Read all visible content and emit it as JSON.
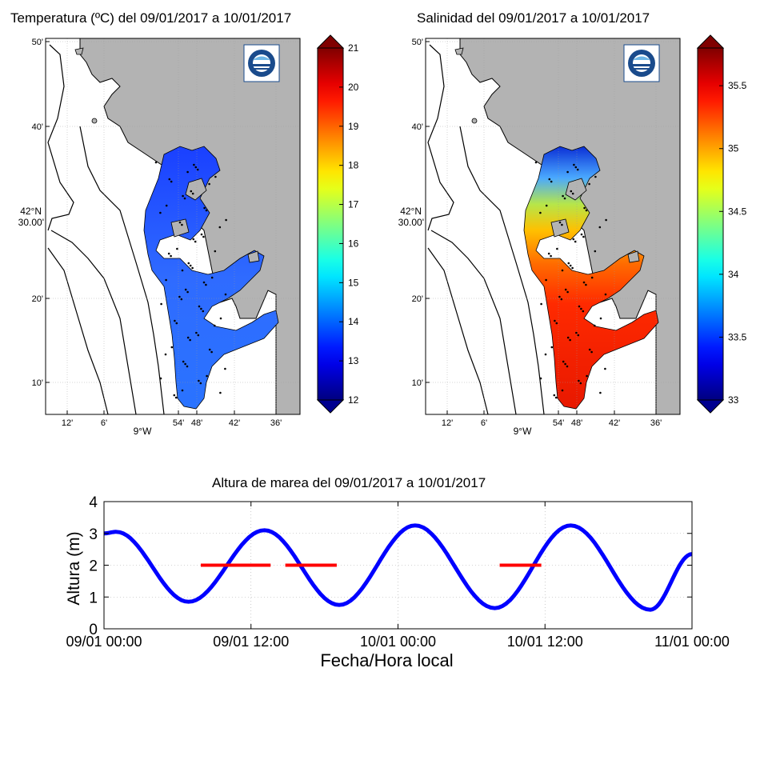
{
  "maps": {
    "temperature": {
      "title": "Temperatura (ºC) del 09/01/2017 a 10/01/2017",
      "colorbar_ticks": [
        "12",
        "13",
        "14",
        "15",
        "16",
        "17",
        "18",
        "19",
        "20",
        "21"
      ],
      "colorbar_range": [
        12,
        21
      ]
    },
    "salinity": {
      "title": "Salinidad del 09/01/2017 a 10/01/2017",
      "colorbar_ticks": [
        "33",
        "33.5",
        "34",
        "34.5",
        "35",
        "35.5"
      ],
      "colorbar_range": [
        33,
        35.8
      ]
    },
    "lat_ticks": [
      "50'",
      "40'",
      "20'",
      "10'"
    ],
    "lat_main": [
      "42°N",
      "30.00'"
    ],
    "lon_ticks": [
      "12'",
      "6'",
      "54'",
      "48'",
      "42'",
      "36'"
    ],
    "lon_main": "9°W",
    "colors": {
      "land": "#b3b3b3",
      "sea": "#ffffff",
      "stations": "#000000"
    }
  },
  "chart_data": {
    "type": "line",
    "title": "Altura de marea del 09/01/2017 a 10/01/2017",
    "xlabel": "Fecha/Hora local",
    "ylabel": "Altura (m)",
    "ylim": [
      0,
      4
    ],
    "xlim_hours": [
      0,
      48
    ],
    "yticks": [
      "0",
      "1",
      "2",
      "3",
      "4"
    ],
    "xticks": [
      {
        "hours": 0,
        "label": "09/01 00:00"
      },
      {
        "hours": 12,
        "label": "09/01 12:00"
      },
      {
        "hours": 24,
        "label": "10/01 00:00"
      },
      {
        "hours": 36,
        "label": "10/01 12:00"
      },
      {
        "hours": 48,
        "label": "11/01 00:00"
      }
    ],
    "series": [
      {
        "color": "#0000ff",
        "x": [
          0,
          1,
          6.9,
          13.1,
          19.2,
          25.4,
          31.9,
          38.1,
          44.6,
          48
        ],
        "y": [
          3.0,
          3.05,
          0.85,
          3.1,
          0.75,
          3.25,
          0.65,
          3.25,
          0.6,
          2.35
        ]
      }
    ],
    "sampling_windows": {
      "color": "#ff0000",
      "y": 2.0,
      "x_ranges": [
        [
          7.9,
          13.6
        ],
        [
          14.8,
          19.0
        ],
        [
          32.3,
          35.7
        ]
      ]
    }
  }
}
